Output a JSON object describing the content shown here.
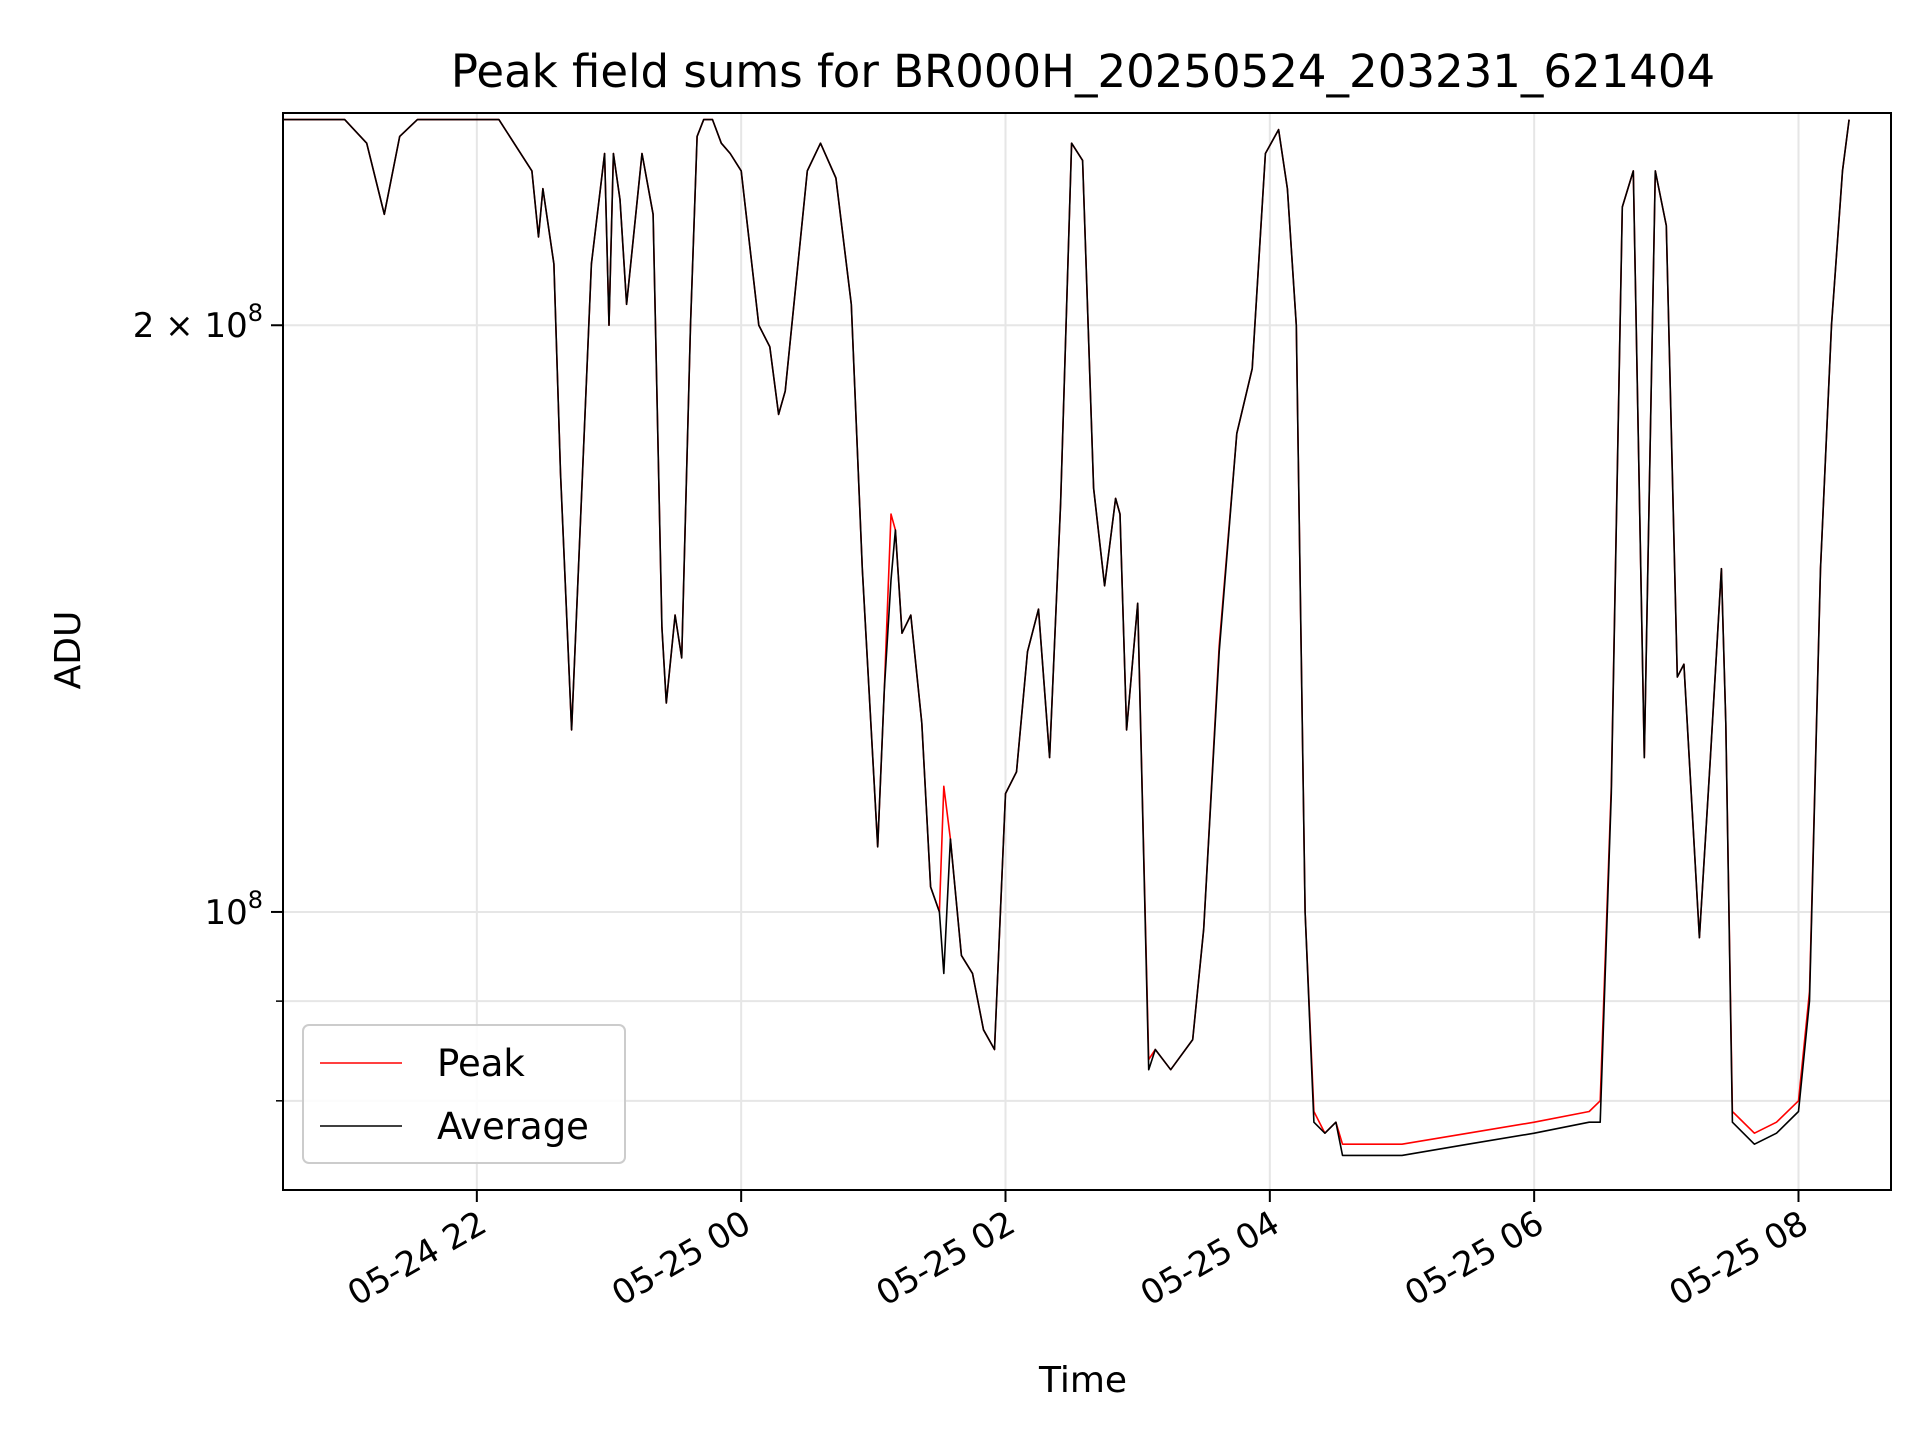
{
  "chart_data": {
    "type": "line",
    "title": "Peak field sums for BR000H_20250524_203231_621404",
    "xlabel": "Time",
    "ylabel": "ADU",
    "y_scale": "log",
    "grid": true,
    "legend_placement": "lower-left",
    "xlim": [
      "2025-05-24 20:32",
      "2025-05-25 08:42"
    ],
    "ylim": [
      72000000,
      257000000
    ],
    "x_ticks": [
      {
        "value": "2025-05-24 22:00",
        "label": "05-24 22"
      },
      {
        "value": "2025-05-25 00:00",
        "label": "05-25 00"
      },
      {
        "value": "2025-05-25 02:00",
        "label": "05-25 02"
      },
      {
        "value": "2025-05-25 04:00",
        "label": "05-25 04"
      },
      {
        "value": "2025-05-25 06:00",
        "label": "05-25 06"
      },
      {
        "value": "2025-05-25 08:00",
        "label": "05-25 08"
      }
    ],
    "y_ticks_major": [
      {
        "value": 100000000,
        "label_base": "10",
        "label_exp": "8"
      },
      {
        "value": 200000000,
        "label_base": "2 × 10",
        "label_exp": "8"
      }
    ],
    "y_ticks_minor": [
      80000000,
      90000000
    ],
    "colors": {
      "Peak": "#ff0000",
      "Average": "#000000"
    },
    "series": [
      {
        "name": "Average",
        "x": [
          "2025-05-24 20:32",
          "2025-05-24 21:00",
          "2025-05-24 21:10",
          "2025-05-24 21:18",
          "2025-05-24 21:25",
          "2025-05-24 21:33",
          "2025-05-24 21:40",
          "2025-05-24 21:50",
          "2025-05-24 22:10",
          "2025-05-24 22:25",
          "2025-05-24 22:28",
          "2025-05-24 22:30",
          "2025-05-24 22:35",
          "2025-05-24 22:38",
          "2025-05-24 22:43",
          "2025-05-24 22:52",
          "2025-05-24 22:58",
          "2025-05-24 23:00",
          "2025-05-24 23:02",
          "2025-05-24 23:05",
          "2025-05-24 23:08",
          "2025-05-24 23:15",
          "2025-05-24 23:20",
          "2025-05-24 23:24",
          "2025-05-24 23:26",
          "2025-05-24 23:30",
          "2025-05-24 23:33",
          "2025-05-24 23:37",
          "2025-05-24 23:40",
          "2025-05-24 23:43",
          "2025-05-24 23:47",
          "2025-05-24 23:51",
          "2025-05-24 23:55",
          "2025-05-25 00:00",
          "2025-05-25 00:08",
          "2025-05-25 00:13",
          "2025-05-25 00:17",
          "2025-05-25 00:20",
          "2025-05-25 00:30",
          "2025-05-25 00:36",
          "2025-05-25 00:43",
          "2025-05-25 00:50",
          "2025-05-25 00:55",
          "2025-05-25 01:02",
          "2025-05-25 01:05",
          "2025-05-25 01:08",
          "2025-05-25 01:10",
          "2025-05-25 01:13",
          "2025-05-25 01:17",
          "2025-05-25 01:22",
          "2025-05-25 01:26",
          "2025-05-25 01:30",
          "2025-05-25 01:32",
          "2025-05-25 01:35",
          "2025-05-25 01:40",
          "2025-05-25 01:45",
          "2025-05-25 01:50",
          "2025-05-25 01:55",
          "2025-05-25 02:00",
          "2025-05-25 02:05",
          "2025-05-25 02:10",
          "2025-05-25 02:15",
          "2025-05-25 02:20",
          "2025-05-25 02:25",
          "2025-05-25 02:30",
          "2025-05-25 02:35",
          "2025-05-25 02:40",
          "2025-05-25 02:45",
          "2025-05-25 02:50",
          "2025-05-25 02:52",
          "2025-05-25 02:55",
          "2025-05-25 03:00",
          "2025-05-25 03:05",
          "2025-05-25 03:08",
          "2025-05-25 03:15",
          "2025-05-25 03:25",
          "2025-05-25 03:30",
          "2025-05-25 03:37",
          "2025-05-25 03:45",
          "2025-05-25 03:52",
          "2025-05-25 03:58",
          "2025-05-25 04:04",
          "2025-05-25 04:08",
          "2025-05-25 04:12",
          "2025-05-25 04:16",
          "2025-05-25 04:20",
          "2025-05-25 04:25",
          "2025-05-25 04:30",
          "2025-05-25 04:33",
          "2025-05-25 04:40",
          "2025-05-25 05:00",
          "2025-05-25 05:30",
          "2025-05-25 06:00",
          "2025-05-25 06:25",
          "2025-05-25 06:30",
          "2025-05-25 06:35",
          "2025-05-25 06:40",
          "2025-05-25 06:45",
          "2025-05-25 06:50",
          "2025-05-25 06:55",
          "2025-05-25 07:00",
          "2025-05-25 07:05",
          "2025-05-25 07:08",
          "2025-05-25 07:15",
          "2025-05-25 07:20",
          "2025-05-25 07:25",
          "2025-05-25 07:27",
          "2025-05-25 07:30",
          "2025-05-25 07:40",
          "2025-05-25 07:50",
          "2025-05-25 08:00",
          "2025-05-25 08:05",
          "2025-05-25 08:10",
          "2025-05-25 08:15",
          "2025-05-25 08:20",
          "2025-05-25 08:23"
        ],
        "values": [
          255000000,
          255000000,
          248000000,
          228000000,
          250000000,
          255000000,
          255000000,
          255000000,
          255000000,
          240000000,
          222000000,
          235000000,
          215000000,
          168000000,
          124000000,
          215000000,
          245000000,
          200000000,
          245000000,
          232000000,
          205000000,
          245000000,
          228000000,
          140000000,
          128000000,
          142000000,
          135000000,
          200000000,
          250000000,
          255000000,
          255000000,
          248000000,
          245000000,
          240000000,
          200000000,
          195000000,
          180000000,
          185000000,
          240000000,
          248000000,
          238000000,
          205000000,
          150000000,
          108000000,
          130000000,
          148000000,
          157000000,
          139000000,
          142000000,
          125000000,
          103000000,
          100000000,
          93000000,
          109000000,
          95000000,
          93000000,
          87000000,
          85000000,
          115000000,
          118000000,
          136000000,
          143000000,
          120000000,
          162000000,
          248000000,
          243000000,
          165000000,
          147000000,
          163000000,
          160000000,
          124000000,
          144000000,
          83000000,
          85000000,
          83000000,
          86000000,
          98000000,
          136000000,
          176000000,
          190000000,
          245000000,
          252000000,
          235000000,
          200000000,
          100000000,
          78000000,
          77000000,
          78000000,
          75000000,
          75000000,
          75000000,
          76000000,
          77000000,
          78000000,
          78000000,
          115000000,
          230000000,
          240000000,
          120000000,
          240000000,
          225000000,
          132000000,
          134000000,
          97000000,
          120000000,
          150000000,
          125000000,
          78000000,
          76000000,
          77000000,
          79000000,
          90000000,
          150000000,
          200000000,
          240000000,
          255000000
        ]
      },
      {
        "name": "Peak",
        "x": [
          "2025-05-24 20:32",
          "2025-05-24 21:00",
          "2025-05-24 21:10",
          "2025-05-24 21:18",
          "2025-05-24 21:25",
          "2025-05-24 21:33",
          "2025-05-24 21:40",
          "2025-05-24 21:50",
          "2025-05-24 22:10",
          "2025-05-24 22:25",
          "2025-05-24 22:28",
          "2025-05-24 22:30",
          "2025-05-24 22:35",
          "2025-05-24 22:38",
          "2025-05-24 22:43",
          "2025-05-24 22:52",
          "2025-05-24 22:58",
          "2025-05-24 23:00",
          "2025-05-24 23:02",
          "2025-05-24 23:05",
          "2025-05-24 23:08",
          "2025-05-24 23:15",
          "2025-05-24 23:20",
          "2025-05-24 23:24",
          "2025-05-24 23:26",
          "2025-05-24 23:30",
          "2025-05-24 23:33",
          "2025-05-24 23:37",
          "2025-05-24 23:40",
          "2025-05-24 23:43",
          "2025-05-24 23:47",
          "2025-05-24 23:51",
          "2025-05-24 23:55",
          "2025-05-25 00:00",
          "2025-05-25 00:08",
          "2025-05-25 00:13",
          "2025-05-25 00:17",
          "2025-05-25 00:20",
          "2025-05-25 00:30",
          "2025-05-25 00:36",
          "2025-05-25 00:43",
          "2025-05-25 00:50",
          "2025-05-25 00:55",
          "2025-05-25 01:02",
          "2025-05-25 01:05",
          "2025-05-25 01:08",
          "2025-05-25 01:10",
          "2025-05-25 01:13",
          "2025-05-25 01:17",
          "2025-05-25 01:22",
          "2025-05-25 01:26",
          "2025-05-25 01:30",
          "2025-05-25 01:32",
          "2025-05-25 01:35",
          "2025-05-25 01:40",
          "2025-05-25 01:45",
          "2025-05-25 01:50",
          "2025-05-25 01:55",
          "2025-05-25 02:00",
          "2025-05-25 02:05",
          "2025-05-25 02:10",
          "2025-05-25 02:15",
          "2025-05-25 02:20",
          "2025-05-25 02:25",
          "2025-05-25 02:30",
          "2025-05-25 02:35",
          "2025-05-25 02:40",
          "2025-05-25 02:45",
          "2025-05-25 02:50",
          "2025-05-25 02:52",
          "2025-05-25 02:55",
          "2025-05-25 03:00",
          "2025-05-25 03:05",
          "2025-05-25 03:08",
          "2025-05-25 03:15",
          "2025-05-25 03:25",
          "2025-05-25 03:30",
          "2025-05-25 03:37",
          "2025-05-25 03:45",
          "2025-05-25 03:52",
          "2025-05-25 03:58",
          "2025-05-25 04:04",
          "2025-05-25 04:08",
          "2025-05-25 04:12",
          "2025-05-25 04:16",
          "2025-05-25 04:20",
          "2025-05-25 04:25",
          "2025-05-25 04:30",
          "2025-05-25 04:33",
          "2025-05-25 04:40",
          "2025-05-25 05:00",
          "2025-05-25 05:30",
          "2025-05-25 06:00",
          "2025-05-25 06:25",
          "2025-05-25 06:30",
          "2025-05-25 06:35",
          "2025-05-25 06:40",
          "2025-05-25 06:45",
          "2025-05-25 06:50",
          "2025-05-25 06:55",
          "2025-05-25 07:00",
          "2025-05-25 07:05",
          "2025-05-25 07:08",
          "2025-05-25 07:15",
          "2025-05-25 07:20",
          "2025-05-25 07:25",
          "2025-05-25 07:27",
          "2025-05-25 07:30",
          "2025-05-25 07:40",
          "2025-05-25 07:50",
          "2025-05-25 08:00",
          "2025-05-25 08:05",
          "2025-05-25 08:10",
          "2025-05-25 08:15",
          "2025-05-25 08:20",
          "2025-05-25 08:23"
        ],
        "values": [
          255000000,
          255000000,
          248000000,
          228000000,
          250000000,
          255000000,
          255000000,
          255000000,
          255000000,
          240000000,
          222000000,
          235000000,
          215000000,
          168000000,
          124000000,
          215000000,
          245000000,
          200000000,
          245000000,
          232000000,
          205000000,
          245000000,
          228000000,
          140000000,
          128000000,
          142000000,
          135000000,
          200000000,
          250000000,
          255000000,
          255000000,
          248000000,
          245000000,
          240000000,
          200000000,
          195000000,
          180000000,
          185000000,
          240000000,
          248000000,
          238000000,
          205000000,
          150000000,
          108000000,
          130000000,
          160000000,
          157000000,
          139000000,
          142000000,
          125000000,
          103000000,
          100000000,
          116000000,
          109000000,
          95000000,
          93000000,
          87000000,
          85000000,
          115000000,
          118000000,
          136000000,
          143000000,
          120000000,
          162000000,
          248000000,
          243000000,
          165000000,
          147000000,
          163000000,
          160000000,
          124000000,
          144000000,
          84000000,
          85000000,
          83000000,
          86000000,
          98000000,
          137000000,
          176000000,
          190000000,
          245000000,
          252000000,
          235000000,
          200000000,
          100000000,
          79000000,
          77000000,
          78000000,
          76000000,
          76000000,
          76000000,
          77000000,
          78000000,
          79000000,
          80000000,
          116000000,
          230000000,
          240000000,
          120000000,
          240000000,
          225000000,
          132000000,
          134000000,
          97000000,
          120000000,
          150000000,
          125000000,
          79000000,
          77000000,
          78000000,
          80000000,
          91000000,
          150000000,
          200000000,
          240000000,
          255000000
        ]
      }
    ]
  }
}
